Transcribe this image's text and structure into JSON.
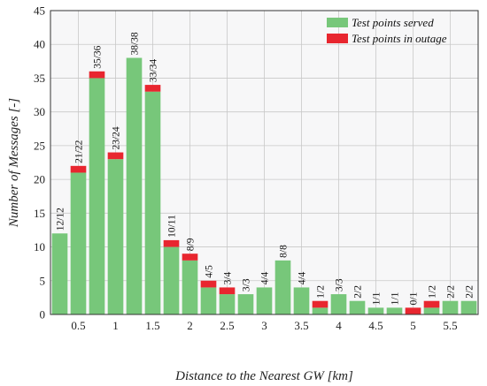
{
  "chart_data": {
    "type": "bar",
    "stacked": true,
    "xlabel": "Distance to the Nearest GW [km]",
    "ylabel": "Number of Messages [-]",
    "ylim": [
      0,
      45
    ],
    "yticks": [
      0,
      5,
      10,
      15,
      20,
      25,
      30,
      35,
      40,
      45
    ],
    "xticks": [
      "0.5",
      "1",
      "1.5",
      "2",
      "2.5",
      "3",
      "3.5",
      "4",
      "4.5",
      "5",
      "5.5"
    ],
    "xtick_bin_positions": [
      1.5,
      3.5,
      5.5,
      7.5,
      9.5,
      11.5,
      13.5,
      15.5,
      17.5,
      19.5,
      21.5
    ],
    "grid": true,
    "legend_position": "top-right",
    "colors": {
      "served": "#77c77a",
      "outage": "#e8262f",
      "grid": "#c8c8c8",
      "plot_bg": "#f7f7f8"
    },
    "series": [
      {
        "name": "Test points served",
        "values": [
          12,
          21,
          35,
          23,
          38,
          33,
          10,
          8,
          4,
          3,
          3,
          4,
          8,
          4,
          1,
          3,
          2,
          1,
          1,
          0,
          1,
          2,
          2
        ]
      },
      {
        "name": "Test points in outage",
        "values": [
          0,
          1,
          1,
          1,
          0,
          1,
          1,
          1,
          1,
          1,
          0,
          0,
          0,
          0,
          1,
          0,
          0,
          0,
          0,
          1,
          1,
          0,
          0
        ]
      }
    ],
    "bar_labels": [
      "12/12",
      "21/22",
      "35/36",
      "23/24",
      "38/38",
      "33/34",
      "10/11",
      "8/9",
      "4/5",
      "3/4",
      "3/3",
      "4/4",
      "8/8",
      "4/4",
      "1/2",
      "3/3",
      "2/2",
      "1/1",
      "1/1",
      "0/1",
      "1/2",
      "2/2",
      "2/2"
    ]
  }
}
